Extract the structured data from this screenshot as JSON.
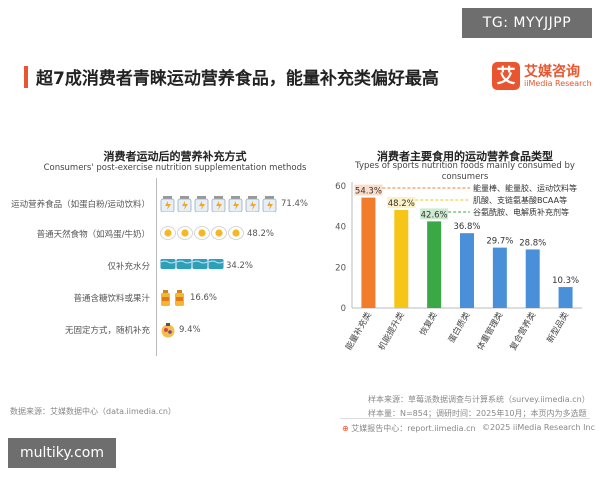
{
  "watermark_top": "TG: MYYJJPP",
  "watermark_bottom": "multiky.com",
  "page_title": "超7成消费者青睐运动营养食品，能量补充类偏好最高",
  "logo": {
    "mark": "艾",
    "cn": "艾媒咨询",
    "en": "iiMedia Research"
  },
  "colors": {
    "accent": "#e8552f",
    "left_bar": "#4a90d9",
    "bar_orange": "#f07c2c",
    "bar_yellow": "#f5c518",
    "bar_green": "#3aa845",
    "bar_blue": "#4a90d9"
  },
  "chart_data": [
    {
      "type": "bar",
      "orientation": "horizontal",
      "title": "消费者运动后的营养补充方式",
      "subtitle": "Consumers' post-exercise nutrition supplementation methods",
      "categories": [
        "运动营养食品（如蛋白粉/运动饮料）",
        "普通天然食物（如鸡蛋/牛奶）",
        "仅补充水分",
        "普通含糖饮料或果汁",
        "无固定方式，随机补充"
      ],
      "values": [
        71.4,
        48.2,
        34.2,
        16.6,
        9.4
      ],
      "value_labels": [
        "71.4%",
        "48.2%",
        "34.2%",
        "16.6%",
        "9.4%"
      ],
      "icons": [
        "protein-bottle-icon",
        "egg-icon",
        "water-icon",
        "juice-bottle-icon",
        "snack-icon"
      ],
      "xlim": [
        0,
        100
      ]
    },
    {
      "type": "bar",
      "title": "消费者主要食用的运动营养食品类型",
      "subtitle": "Types of sports nutrition foods mainly consumed by consumers",
      "categories": [
        "能量补充类",
        "机能提升类",
        "恢复类",
        "蛋白质类",
        "体重管理类",
        "复合营养类",
        "新型品类"
      ],
      "values": [
        54.3,
        48.2,
        42.6,
        36.8,
        29.7,
        28.8,
        10.3
      ],
      "value_labels": [
        "54.3%",
        "48.2%",
        "42.6%",
        "36.8%",
        "29.7%",
        "28.8%",
        "10.3%"
      ],
      "ylim": [
        0,
        60
      ],
      "yticks": [
        "0",
        "20",
        "40",
        "60"
      ],
      "annotations": [
        "能量棒、能量胶、运动饮料等",
        "肌酸、支链氨基酸BCAA等",
        "谷氨酰胺、电解质补充剂等"
      ]
    }
  ],
  "footer": {
    "left_source": "数据来源：艾媒数据中心（data.iimedia.cn）",
    "sample_source": "样本来源：草莓派数据调查与计算系统（survey.iimedia.cn）",
    "sample_size": "样本量：N=854；调研时间：2025年10月；本页内为多选题",
    "report_center": "艾媒报告中心：report.iimedia.cn",
    "copyright": "©2025  iiMedia Research Inc"
  }
}
